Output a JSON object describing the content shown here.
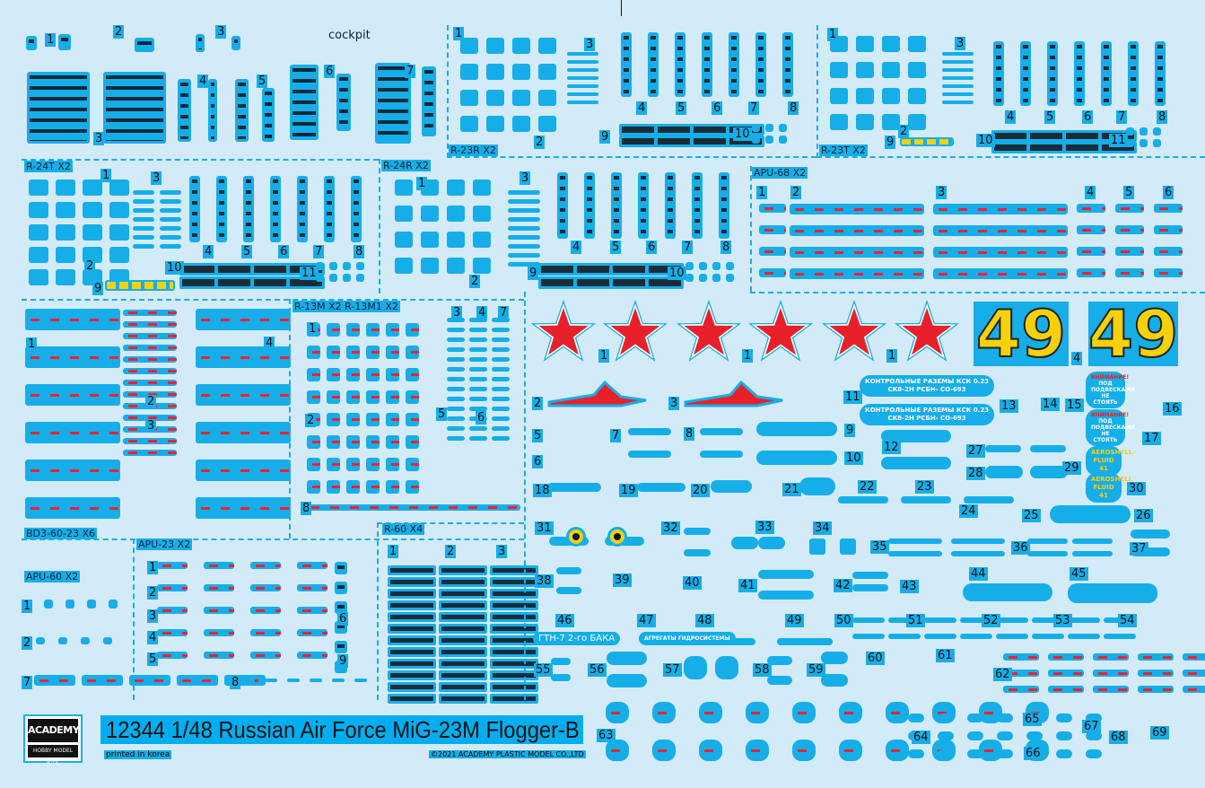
{
  "sheet": {
    "title": "12344 1/48 Russian Air Force MiG-23M Flogger-B",
    "printed": "printed in korea",
    "copyright": "©2021 ACADEMY PLASTIC MODEL CO.,LTD",
    "logo": {
      "brand": "ACADEMY",
      "sub": "HOBBY MODEL KITS"
    }
  },
  "colors": {
    "background": "#d3ebf8",
    "decal_blue": "#16aee8",
    "star_red": "#e8202a",
    "number_yellow": "#f6d10b"
  },
  "section_labels": {
    "cockpit": "cockpit",
    "r23r": "R-23R X2",
    "r23t": "R-23T X2",
    "r24t": "R-24T X2",
    "r24r": "R-24R X2",
    "apu68": "APU-68 X2",
    "bd3": "BD3-60-23 X6",
    "r13m": "R-13M X2  R-13M1 X2",
    "apu23": "APU-23 X2",
    "r60": "R-60 X4",
    "apu60": "APU-60 X2"
  },
  "markings": {
    "tactical_number": [
      "49",
      "49"
    ],
    "stars": 6
  },
  "stencils": {
    "kontrol_1": "КОНТРОЛЬНЫЕ РАЗЕМЫ КСК 0.23",
    "kontrol_2": "СК8-2Н  РСБН-  СО-693",
    "warning_title": "ВНИМАНИЕ!",
    "warning_text": "ПОД ПОДВЕСКАМИ НЕ СТОЯТЬ",
    "aeroshell": "AEROSHELL FLUID 41",
    "gtn": "ГТН-7 2-го БАКА",
    "hydro": "АГРЕГАТЫ ГИДРОСИСТЕМЫ"
  },
  "callouts": {
    "cockpit": [
      "1",
      "2",
      "3",
      "3",
      "4",
      "5",
      "6",
      "7"
    ],
    "r23r": [
      "1",
      "3",
      "2",
      "4",
      "5",
      "6",
      "7",
      "8",
      "9",
      "10"
    ],
    "r23t": [
      "1",
      "3",
      "2",
      "4",
      "5",
      "6",
      "7",
      "8",
      "9",
      "10",
      "11"
    ],
    "r24t": [
      "1",
      "3",
      "2",
      "4",
      "5",
      "6",
      "7",
      "8",
      "9",
      "10",
      "11"
    ],
    "r24r": [
      "1",
      "3",
      "2",
      "4",
      "5",
      "6",
      "7",
      "8",
      "9",
      "10"
    ],
    "apu68": [
      "1",
      "2",
      "3",
      "4",
      "5",
      "6"
    ],
    "bd3": [
      "1",
      "2",
      "3",
      "4"
    ],
    "r13m": [
      "1",
      "2",
      "3",
      "4",
      "5",
      "6",
      "7",
      "8"
    ],
    "apu23": [
      "1",
      "2",
      "3",
      "4",
      "5",
      "6",
      "7",
      "8",
      "9"
    ],
    "r60": [
      "1",
      "2",
      "3"
    ],
    "apu60": [
      "1",
      "2"
    ],
    "main": [
      "1",
      "1",
      "1",
      "2",
      "3",
      "4",
      "5",
      "6",
      "7",
      "8",
      "9",
      "10",
      "11",
      "12",
      "13",
      "14",
      "15",
      "16",
      "17",
      "18",
      "19",
      "20",
      "21",
      "22",
      "23",
      "24",
      "25",
      "26",
      "27",
      "28",
      "29",
      "30",
      "31",
      "32",
      "33",
      "34",
      "35",
      "36",
      "37",
      "38",
      "39",
      "40",
      "41",
      "42",
      "43",
      "44",
      "45",
      "46",
      "47",
      "48",
      "49",
      "50",
      "51",
      "52",
      "53",
      "54",
      "55",
      "56",
      "57",
      "58",
      "59",
      "60",
      "61",
      "62",
      "63",
      "64",
      "65",
      "66",
      "67",
      "68",
      "69"
    ]
  }
}
